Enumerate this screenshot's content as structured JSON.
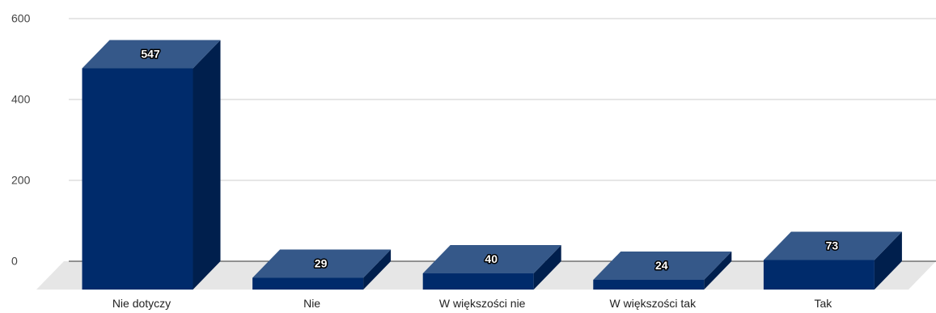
{
  "chart_data": {
    "type": "bar",
    "style": "3d",
    "categories": [
      "Nie dotyczy",
      "Nie",
      "W większości nie",
      "W większości tak",
      "Tak"
    ],
    "values": [
      547,
      29,
      40,
      24,
      73
    ],
    "data_labels": [
      "547",
      "29",
      "40",
      "24",
      "73"
    ],
    "title": "",
    "xlabel": "",
    "ylabel": "",
    "ylim": [
      0,
      600
    ],
    "yticks": [
      "0",
      "200",
      "400",
      "600"
    ],
    "grid": true,
    "legend": "none",
    "colors": {
      "bar_front": "#002b6b",
      "bar_top": "#355889",
      "bar_side": "#001f4d",
      "floor": "#e6e6e6",
      "gridline": "#cccccc",
      "baseline": "#333333"
    }
  }
}
